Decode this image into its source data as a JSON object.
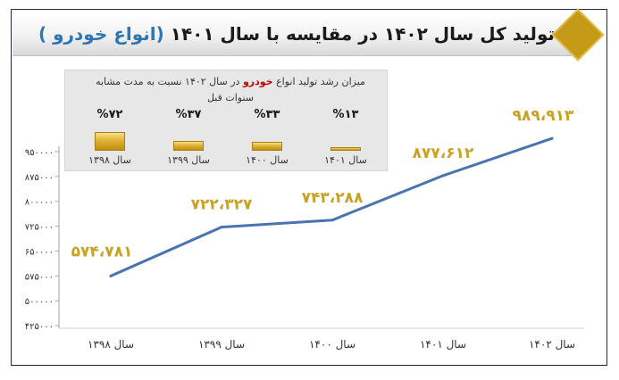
{
  "title": {
    "main": "تولید کل سال ۱۴۰۲ در مقایسه با سال ۱۴۰۱",
    "highlight": "(انواع خودرو )",
    "accent_color": "#2e75b6"
  },
  "colors": {
    "line": "#4a74b0",
    "data_label": "#c9a224",
    "badge": "#c49a16",
    "frame": "#1f2a44"
  },
  "growth_panel": {
    "caption_part1": "میزان رشد تولید انواع",
    "caption_highlight": "خودرو",
    "caption_part2": "در سال ۱۴۰۲ نسبت به مدت مشابه سنوات قبل",
    "items": [
      {
        "year": "سال ۱۴۰۱",
        "percent": "%۱۳",
        "value": 13
      },
      {
        "year": "سال ۱۴۰۰",
        "percent": "%۳۳",
        "value": 33
      },
      {
        "year": "سال ۱۳۹۹",
        "percent": "%۳۷",
        "value": 37
      },
      {
        "year": "سال ۱۳۹۸",
        "percent": "%۷۲",
        "value": 72
      }
    ]
  },
  "chart_data": {
    "type": "line",
    "title": "تولید کل سال ۱۴۰۲ در مقایسه با سال ۱۴۰۱ (انواع خودرو )",
    "categories": [
      "سال ۱۳۹۸",
      "سال ۱۳۹۹",
      "سال ۱۴۰۰",
      "سال ۱۴۰۱",
      "سال ۱۴۰۲"
    ],
    "series": [
      {
        "values": [
          574781,
          722327,
          743288,
          877612,
          989913
        ],
        "data_labels": [
          "۵۷۴،۷۸۱",
          "۷۲۲،۳۲۷",
          "۷۴۳،۲۸۸",
          "۸۷۷،۶۱۲",
          "۹۸۹،۹۱۳"
        ]
      }
    ],
    "ylim": [
      425000,
      950000
    ],
    "yticks": [
      425000,
      500000,
      575000,
      650000,
      725000,
      800000,
      875000,
      950000
    ],
    "ytick_labels": [
      "۴۲۵۰۰۰",
      "۵۰۰۰۰۰",
      "۵۷۵۰۰۰",
      "۶۵۰۰۰۰",
      "۷۲۵۰۰۰",
      "۸۰۰۰۰۰",
      "۸۷۵۰۰۰",
      "۹۵۰۰۰۰"
    ],
    "grid": false,
    "xlabel": "",
    "ylabel": ""
  }
}
